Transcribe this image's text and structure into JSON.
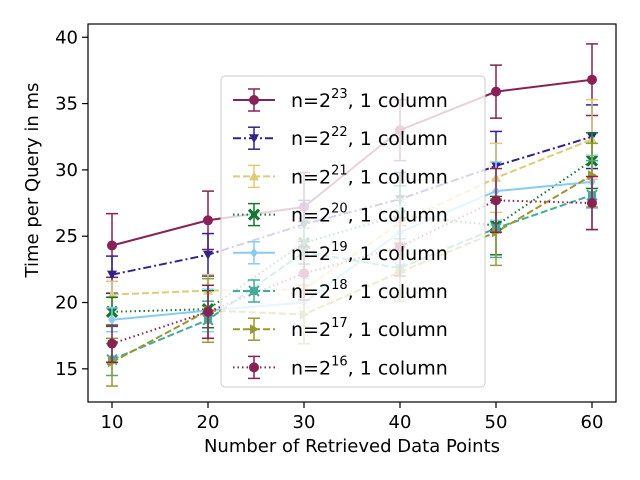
{
  "chart_data": {
    "type": "line",
    "title": "",
    "xlabel": "Number of Retrieved Data Points",
    "ylabel": "Time per Query in ms",
    "xlim": [
      7.5,
      62.5
    ],
    "ylim": [
      12.5,
      41
    ],
    "x_ticks": [
      10,
      20,
      30,
      40,
      50,
      60
    ],
    "y_ticks": [
      15,
      20,
      25,
      30,
      35,
      40
    ],
    "grid": false,
    "legend": "center",
    "x": [
      10,
      20,
      30,
      40,
      50,
      60
    ],
    "series": [
      {
        "name_base": "n=2",
        "name_exp": "23",
        "name_suffix": ", 1 column",
        "color": "#882255",
        "dash": "solid",
        "marker": "circle",
        "values": [
          24.3,
          26.2,
          27.2,
          33.0,
          35.9,
          36.8
        ],
        "errors": [
          2.4,
          2.2,
          2.6,
          2.3,
          2.0,
          2.7
        ]
      },
      {
        "name_base": "n=2",
        "name_exp": "22",
        "name_suffix": ", 1 column",
        "color": "#332288",
        "dash": "dashdot",
        "marker": "triangle-down",
        "values": [
          22.1,
          23.6,
          25.9,
          27.8,
          30.3,
          32.5
        ],
        "errors": [
          1.4,
          1.6,
          1.8,
          2.0,
          2.6,
          2.4
        ]
      },
      {
        "name_base": "n=2",
        "name_exp": "21",
        "name_suffix": ", 1 column",
        "color": "#DDCC77",
        "dash": "dashed",
        "marker": "triangle-up",
        "values": [
          20.6,
          20.9,
          21.0,
          26.0,
          29.4,
          32.3
        ],
        "errors": [
          1.0,
          1.2,
          1.4,
          1.8,
          2.6,
          3.0
        ]
      },
      {
        "name_base": "n=2",
        "name_exp": "20",
        "name_suffix": ", 1 column",
        "color": "#117733",
        "dash": "dotted",
        "marker": "x",
        "values": [
          19.3,
          19.5,
          24.5,
          26.6,
          25.8,
          30.7
        ],
        "errors": [
          1.1,
          1.4,
          1.6,
          2.2,
          2.2,
          2.1
        ]
      },
      {
        "name_base": "n=2",
        "name_exp": "19",
        "name_suffix": ", 1 column",
        "color": "#88CCEE",
        "dash": "solid",
        "marker": "diamond",
        "values": [
          18.7,
          19.4,
          20.0,
          25.3,
          28.4,
          29.1
        ],
        "errors": [
          0.9,
          1.6,
          1.8,
          2.0,
          2.2,
          2.0
        ]
      },
      {
        "name_base": "n=2",
        "name_exp": "18",
        "name_suffix": ", 1 column",
        "color": "#44AA99",
        "dash": "dashed",
        "marker": "square-x",
        "values": [
          15.7,
          18.7,
          23.8,
          22.6,
          25.6,
          28.1
        ],
        "errors": [
          1.2,
          1.4,
          1.8,
          2.2,
          2.2,
          2.6
        ]
      },
      {
        "name_base": "n=2",
        "name_exp": "17",
        "name_suffix": ", 1 column",
        "color": "#999933",
        "dash": "dashed",
        "marker": "triangle-right",
        "values": [
          15.5,
          19.4,
          19.1,
          22.3,
          25.3,
          29.6
        ],
        "errors": [
          1.8,
          2.4,
          2.2,
          2.2,
          2.5,
          2.4
        ]
      },
      {
        "name_base": "n=2",
        "name_exp": "16",
        "name_suffix": ", 1 column",
        "color": "#882255",
        "dash": "dotted",
        "marker": "circle",
        "values": [
          16.9,
          19.3,
          22.2,
          24.2,
          27.7,
          27.5
        ],
        "errors": [
          1.4,
          2.0,
          2.0,
          2.2,
          2.4,
          2.0
        ]
      }
    ]
  }
}
